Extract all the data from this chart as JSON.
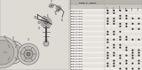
{
  "bg_color": "#e8e4de",
  "left_bg": "#dedad4",
  "right_bg": "#f5f3f0",
  "table_header_bg": "#c8c4be",
  "table_line_color": "#aaaaaa",
  "dot_color": "#333333",
  "text_color": "#222222",
  "header_text": "PART # / DESC",
  "col_headers": [
    "",
    "",
    "",
    "",
    "",
    ""
  ],
  "rows": [
    [
      "",
      true,
      true,
      true,
      true,
      true,
      true
    ],
    [
      "",
      true,
      false,
      true,
      false,
      true,
      false
    ],
    [
      "",
      false,
      true,
      false,
      true,
      false,
      true
    ],
    [
      "",
      true,
      true,
      false,
      false,
      true,
      true
    ],
    [
      "",
      false,
      false,
      true,
      true,
      false,
      false
    ],
    [
      "",
      true,
      false,
      false,
      true,
      true,
      false
    ],
    [
      "",
      false,
      true,
      true,
      false,
      false,
      true
    ],
    [
      "",
      true,
      true,
      true,
      true,
      true,
      true
    ],
    [
      "",
      true,
      false,
      true,
      false,
      true,
      true
    ],
    [
      "",
      false,
      true,
      false,
      true,
      false,
      false
    ],
    [
      "",
      true,
      true,
      true,
      true,
      true,
      true
    ],
    [
      "",
      true,
      false,
      false,
      true,
      false,
      true
    ],
    [
      "",
      false,
      true,
      true,
      false,
      true,
      false
    ],
    [
      "",
      true,
      true,
      false,
      false,
      true,
      true
    ],
    [
      "",
      false,
      false,
      true,
      true,
      false,
      false
    ],
    [
      "",
      true,
      false,
      false,
      true,
      true,
      false
    ],
    [
      "",
      false,
      true,
      true,
      false,
      false,
      true
    ],
    [
      "",
      true,
      true,
      true,
      true,
      true,
      true
    ],
    [
      "",
      true,
      false,
      true,
      false,
      true,
      false
    ],
    [
      "",
      false,
      true,
      false,
      true,
      false,
      true
    ],
    [
      "",
      true,
      true,
      true,
      true,
      true,
      true
    ],
    [
      "",
      true,
      false,
      false,
      true,
      false,
      true
    ],
    [
      "",
      false,
      true,
      true,
      false,
      true,
      false
    ],
    [
      "",
      true,
      true,
      false,
      false,
      true,
      true
    ],
    [
      "",
      false,
      false,
      true,
      true,
      false,
      false
    ]
  ],
  "n_check_cols": 6,
  "row_colors": [
    "#f0ede8",
    "#e8e5e0"
  ]
}
